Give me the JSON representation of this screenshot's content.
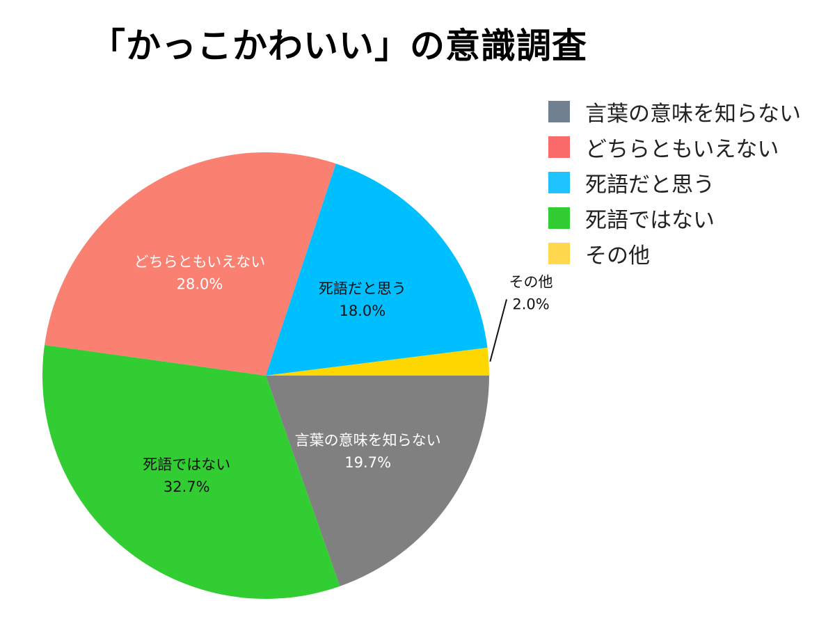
{
  "title": "「かっこかわいい」の意識調査",
  "legend": [
    {
      "label": "言葉の意味を知らない",
      "color": "#708090"
    },
    {
      "label": "どちらともいえない",
      "color": "#fa6a6a"
    },
    {
      "label": "死語だと思う",
      "color": "#1ec3ff"
    },
    {
      "label": "死語ではない",
      "color": "#32cd32"
    },
    {
      "label": "その他",
      "color": "#ffd84d"
    }
  ],
  "chart_data": {
    "type": "pie",
    "title": "「かっこかわいい」の意識調査",
    "legend_position": "top-right",
    "slices": [
      {
        "label": "言葉の意味を知らない",
        "value": 19.7,
        "value_label": "19.7%",
        "color": "#808080",
        "text_color": "#ffffff"
      },
      {
        "label": "死語ではない",
        "value": 32.7,
        "value_label": "32.7%",
        "color": "#32cd32",
        "text_color": "#111111"
      },
      {
        "label": "どちらともいえない",
        "value": 28.0,
        "value_label": "28.0%",
        "color": "#fa8072",
        "text_color": "#ffffff"
      },
      {
        "label": "死語だと思う",
        "value": 18.0,
        "value_label": "18.0%",
        "color": "#00bfff",
        "text_color": "#111111"
      },
      {
        "label": "その他",
        "value": 2.0,
        "value_label": "2.0%",
        "color": "#ffd700",
        "text_color": "#111111"
      }
    ]
  }
}
